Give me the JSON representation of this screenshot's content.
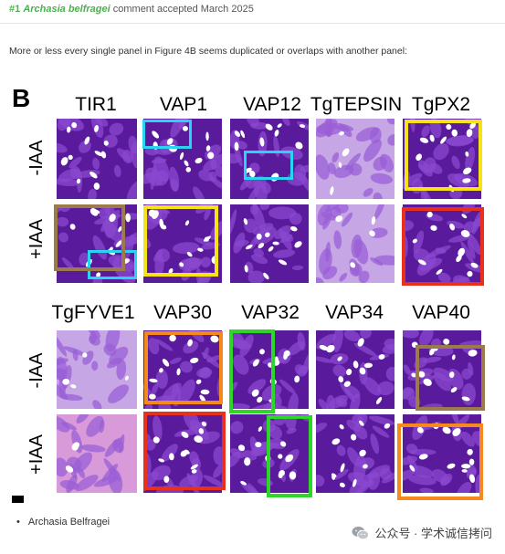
{
  "comment": {
    "number": "#1",
    "author": "Archasia belfragei",
    "status_text": "comment accepted March 2025",
    "body": "More or less every single panel in Figure 4B seems duplicated or overlaps with another panel:"
  },
  "figure": {
    "panel_letter": "B",
    "top_columns": [
      "TIR1",
      "VAP1",
      "VAP12",
      "TgTEPSIN",
      "TgPX2"
    ],
    "bottom_columns": [
      "TgFYVE1",
      "VAP30",
      "VAP32",
      "VAP34",
      "VAP40"
    ],
    "row_labels": [
      "-IAA",
      "+IAA",
      "-IAA",
      "+IAA"
    ],
    "highlight_colors": {
      "cyan": "#29d4f0",
      "yellow": "#f5e316",
      "brown": "#9c7a4a",
      "red": "#e8301c",
      "orange": "#f5891d",
      "green": "#2fd62a"
    },
    "panel_colors": {
      "purple_dark": "#5a1a9c",
      "purple_light": "#c7a6e6",
      "pink": "#d99ad9"
    }
  },
  "list": {
    "items": [
      "Archasia Belfragei"
    ]
  },
  "watermark": {
    "text": "公众号 · 学术诚信拷问",
    "icon": "wechat-icon"
  }
}
